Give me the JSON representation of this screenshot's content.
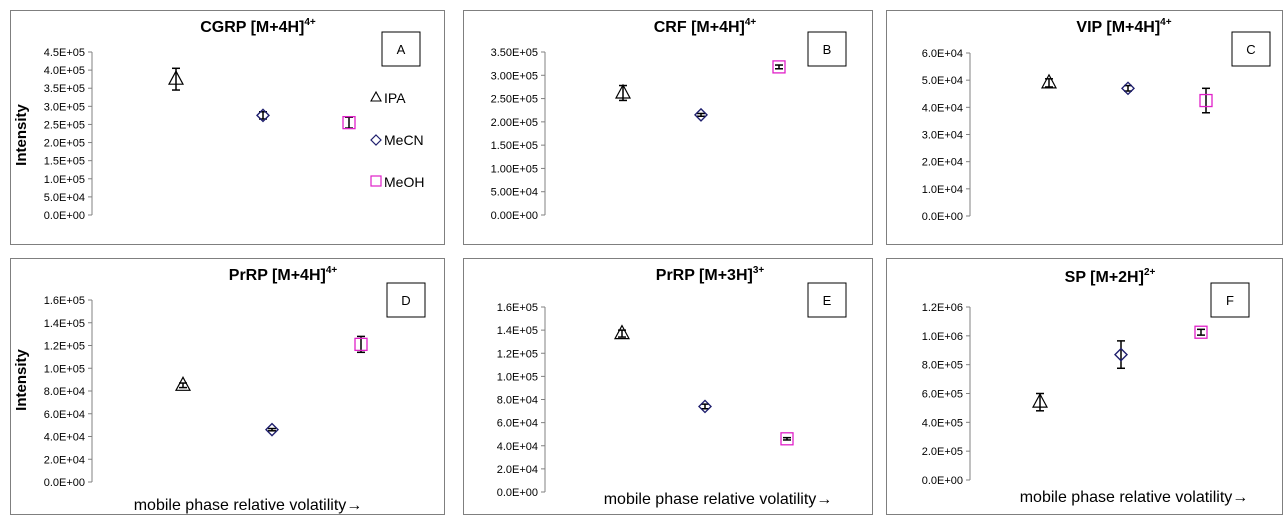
{
  "chart_data": [
    {
      "type": "scatter",
      "title": "CGRP  [M+4H]",
      "title_sup": "4+",
      "panel_label": "A",
      "ylabel": "Intensity",
      "xlabel": "",
      "ylim": [
        0,
        450000
      ],
      "yticks": [
        "0.0E+00",
        "5.0E+04",
        "1.0E+05",
        "1.5E+05",
        "2.0E+05",
        "2.5E+05",
        "3.0E+05",
        "3.5E+05",
        "4.0E+05",
        "4.5E+05"
      ],
      "legend": [
        "IPA",
        "MeCN",
        "MeOH"
      ],
      "legend_position": "right",
      "series": [
        {
          "name": "IPA",
          "marker": "triangle",
          "x": 1,
          "y": 375000,
          "err": 30000
        },
        {
          "name": "MeCN",
          "marker": "diamond",
          "x": 2,
          "y": 275000,
          "err": 10000
        },
        {
          "name": "MeOH",
          "marker": "square",
          "x": 3,
          "y": 255000,
          "err": 15000
        }
      ]
    },
    {
      "type": "scatter",
      "title": "CRF [M+4H]",
      "title_sup": "4+",
      "panel_label": "B",
      "ylabel": "",
      "xlabel": "",
      "ylim": [
        0,
        350000
      ],
      "yticks": [
        "0.00E+00",
        "5.00E+04",
        "1.00E+05",
        "1.50E+05",
        "2.00E+05",
        "2.50E+05",
        "3.00E+05",
        "3.50E+05"
      ],
      "series": [
        {
          "name": "IPA",
          "marker": "triangle",
          "x": 1,
          "y": 262000,
          "err": 16000
        },
        {
          "name": "MeCN",
          "marker": "diamond",
          "x": 2,
          "y": 215000,
          "err": 3000
        },
        {
          "name": "MeOH",
          "marker": "square",
          "x": 3,
          "y": 318000,
          "err": 4000
        }
      ]
    },
    {
      "type": "scatter",
      "title": "VIP [M+4H]",
      "title_sup": "4+",
      "panel_label": "C",
      "ylabel": "",
      "xlabel": "",
      "ylim": [
        0,
        60000
      ],
      "yticks": [
        "0.0E+00",
        "1.0E+04",
        "2.0E+04",
        "3.0E+04",
        "4.0E+04",
        "5.0E+04",
        "6.0E+04"
      ],
      "series": [
        {
          "name": "IPA",
          "marker": "triangle",
          "x": 1,
          "y": 49000,
          "err": 1500
        },
        {
          "name": "MeCN",
          "marker": "diamond",
          "x": 2,
          "y": 47000,
          "err": 1000
        },
        {
          "name": "MeOH",
          "marker": "square",
          "x": 3,
          "y": 42500,
          "err": 4500
        }
      ]
    },
    {
      "type": "scatter",
      "title": "PrRP [M+4H]",
      "title_sup": "4+",
      "panel_label": "D",
      "ylabel": "Intensity",
      "xlabel": "mobile phase relative volatility→",
      "ylim": [
        0,
        160000
      ],
      "yticks": [
        "0.0E+00",
        "2.0E+04",
        "4.0E+04",
        "6.0E+04",
        "8.0E+04",
        "1.0E+05",
        "1.2E+05",
        "1.4E+05",
        "1.6E+05"
      ],
      "series": [
        {
          "name": "IPA",
          "marker": "triangle",
          "x": 1,
          "y": 85000,
          "err": 2000
        },
        {
          "name": "MeCN",
          "marker": "diamond",
          "x": 2,
          "y": 46000,
          "err": 1000
        },
        {
          "name": "MeOH",
          "marker": "square",
          "x": 3,
          "y": 121000,
          "err": 7000
        }
      ]
    },
    {
      "type": "scatter",
      "title": "PrRP  [M+3H]",
      "title_sup": "3+",
      "panel_label": "E",
      "ylabel": "",
      "xlabel": "mobile phase relative volatility→",
      "ylim": [
        0,
        160000
      ],
      "yticks": [
        "0.0E+00",
        "2.0E+04",
        "4.0E+04",
        "6.0E+04",
        "8.0E+04",
        "1.0E+05",
        "1.2E+05",
        "1.4E+05",
        "1.6E+05"
      ],
      "series": [
        {
          "name": "IPA",
          "marker": "triangle",
          "x": 1,
          "y": 137000,
          "err": 3000
        },
        {
          "name": "MeCN",
          "marker": "diamond",
          "x": 2,
          "y": 74000,
          "err": 2000
        },
        {
          "name": "MeOH",
          "marker": "square",
          "x": 3,
          "y": 46000,
          "err": 1000
        }
      ]
    },
    {
      "type": "scatter",
      "title": "SP [M+2H]",
      "title_sup": "2+",
      "panel_label": "F",
      "ylabel": "",
      "xlabel": "mobile phase relative volatility→",
      "ylim": [
        0,
        1200000
      ],
      "yticks": [
        "0.0E+00",
        "2.0E+05",
        "4.0E+05",
        "6.0E+05",
        "8.0E+05",
        "1.0E+06",
        "1.2E+06"
      ],
      "series": [
        {
          "name": "IPA",
          "marker": "triangle",
          "x": 1,
          "y": 540000,
          "err": 60000
        },
        {
          "name": "MeCN",
          "marker": "diamond",
          "x": 2,
          "y": 870000,
          "err": 95000
        },
        {
          "name": "MeOH",
          "marker": "square",
          "x": 3,
          "y": 1025000,
          "err": 20000
        }
      ]
    }
  ],
  "colors": {
    "triangle": "#000000",
    "diamond": "#1f1f6e",
    "square": "#e020c8",
    "errorbar": "#000000",
    "axis": "#808080",
    "panel_border": "#7f7f7f"
  }
}
